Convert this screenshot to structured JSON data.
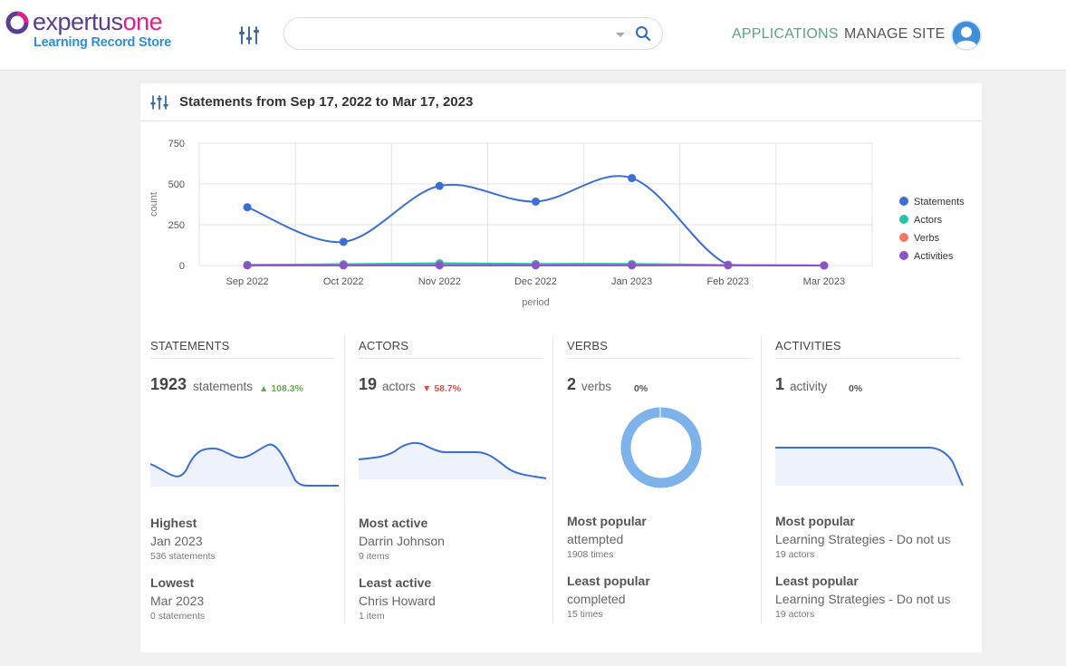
{
  "header": {
    "brand_part1": "expertus",
    "brand_part2": "one",
    "subtitle": "Learning Record Store",
    "search_value": "",
    "nav_applications": "APPLICATIONS",
    "nav_manage_site": "MANAGE SITE",
    "accent": "#5aa38a"
  },
  "panel": {
    "title": "Statements from Sep 17, 2022 to Mar 17, 2023"
  },
  "chart_data": {
    "type": "line",
    "categories": [
      "Sep 2022",
      "Oct 2022",
      "Nov 2022",
      "Dec 2022",
      "Jan 2023",
      "Feb 2023",
      "Mar 2023"
    ],
    "xlabel": "period",
    "ylabel": "count",
    "ylim": [
      0,
      750
    ],
    "yticks": [
      "750",
      "500",
      "250",
      "0"
    ],
    "grid": true,
    "legend_position": "right",
    "series": [
      {
        "name": "Statements",
        "color": "#3b6fd8",
        "values": [
          357,
          145,
          488,
          392,
          536,
          5,
          0
        ]
      },
      {
        "name": "Actors",
        "color": "#22c4a8",
        "values": [
          4,
          8,
          14,
          10,
          10,
          3,
          0
        ]
      },
      {
        "name": "Verbs",
        "color": "#f0795b",
        "values": [
          2,
          2,
          2,
          2,
          2,
          2,
          0
        ]
      },
      {
        "name": "Activities",
        "color": "#8b52c9",
        "values": [
          1,
          1,
          1,
          1,
          1,
          1,
          0
        ]
      }
    ]
  },
  "stats": {
    "statements": {
      "label": "STATEMENTS",
      "count": "1923",
      "unit": "statements",
      "change": "108.3%",
      "k1": "Highest",
      "v1": "Jan 2023",
      "s1": "536 statements",
      "k2": "Lowest",
      "v2": "Mar 2023",
      "s2": "0 statements",
      "spark": [
        145,
        90,
        40,
        80,
        160,
        150,
        140,
        128,
        120,
        130,
        170,
        60,
        0,
        0,
        0
      ]
    },
    "actors": {
      "label": "ACTORS",
      "count": "19",
      "unit": "actors",
      "change": "58.7%",
      "k1": "Most active",
      "v1": "Darrin Johnson",
      "s1": "9 items",
      "k2": "Least active",
      "v2": "Chris Howard",
      "s2": "1 item"
    },
    "verbs": {
      "label": "VERBS",
      "count": "2",
      "unit": "verbs",
      "pct": "0%",
      "k1": "Most popular",
      "v1": "attempted",
      "s1": "1908 times",
      "k2": "Least popular",
      "v2": "completed",
      "s2": "15 times",
      "donut_values": [
        1908,
        15
      ]
    },
    "activities": {
      "label": "ACTIVITIES",
      "count": "1",
      "unit": "activity",
      "pct": "0%",
      "k1": "Most popular",
      "v1": "Learning Strategies - Do not us",
      "s1": "19 actors",
      "k2": "Least popular",
      "v2": "Learning Strategies - Do not us",
      "s2": "19 actors"
    }
  }
}
